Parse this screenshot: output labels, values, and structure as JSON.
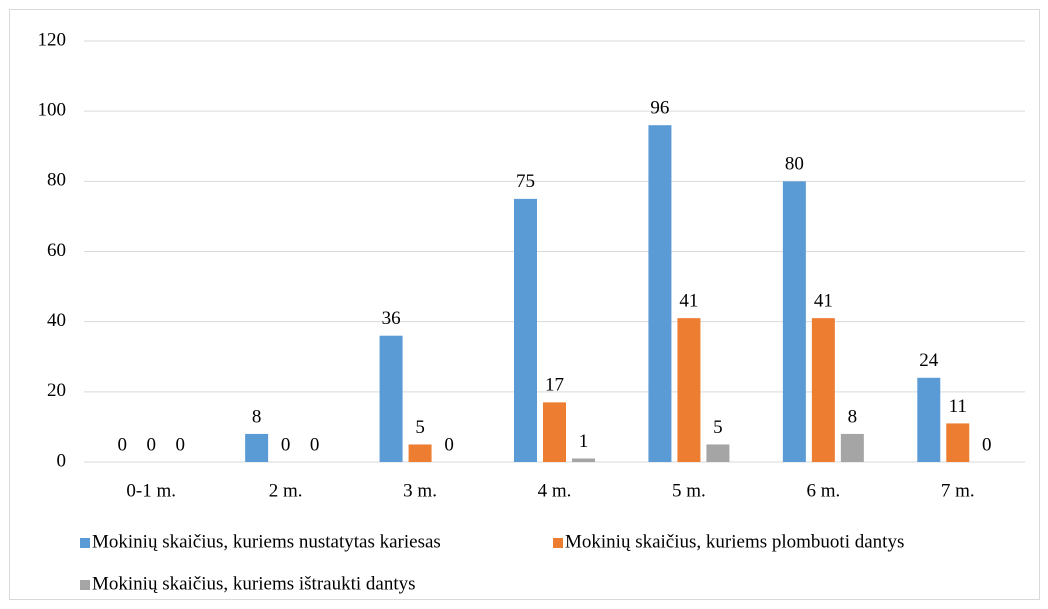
{
  "chart_data": {
    "type": "bar",
    "categories": [
      "0-1 m.",
      "2 m.",
      "3 m.",
      "4 m.",
      "5 m.",
      "6 m.",
      "7 m."
    ],
    "series": [
      {
        "name": "Mokinių skaičius, kuriems nustatytas kariesas",
        "color": "#5b9bd5",
        "values": [
          0,
          8,
          36,
          75,
          96,
          80,
          24
        ]
      },
      {
        "name": "Mokinių skaičius, kuriems plombuoti dantys",
        "color": "#ed7d31",
        "values": [
          0,
          0,
          5,
          17,
          41,
          41,
          11
        ]
      },
      {
        "name": "Mokinių skaičius, kuriems ištraukti dantys",
        "color": "#a5a5a5",
        "values": [
          0,
          0,
          0,
          1,
          5,
          8,
          0
        ]
      }
    ],
    "ylim": [
      0,
      120
    ],
    "yticks": [
      0,
      20,
      40,
      60,
      80,
      100,
      120
    ],
    "grid": true,
    "legend": "bottom"
  }
}
